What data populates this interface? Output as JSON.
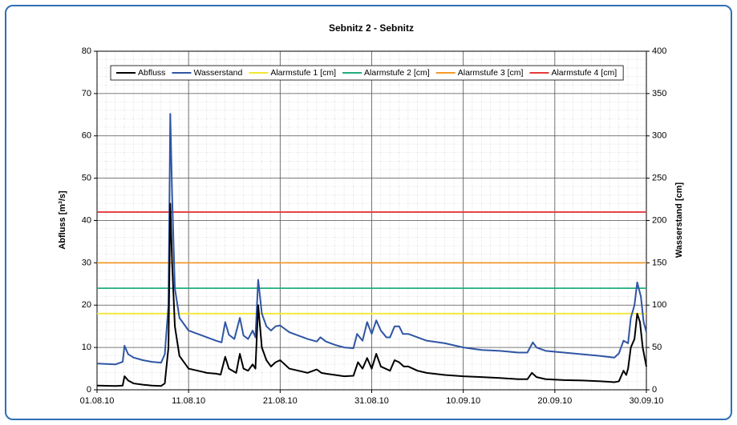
{
  "chart_data": {
    "type": "line",
    "title": "Sebnitz 2 - Sebnitz",
    "y_label": "Abfluss [m³/s]",
    "y2_label": "Wasserstand [cm]",
    "xlim": [
      0,
      60
    ],
    "xticks": [
      {
        "value": 0,
        "label": "01.08.10"
      },
      {
        "value": 10,
        "label": "11.08.10"
      },
      {
        "value": 20,
        "label": "21.08.10"
      },
      {
        "value": 30,
        "label": "31.08.10"
      },
      {
        "value": 40,
        "label": "10.09.10"
      },
      {
        "value": 50,
        "label": "20.09.10"
      },
      {
        "value": 60,
        "label": "30.09.10"
      }
    ],
    "ylim": [
      0,
      80
    ],
    "yticks": [
      0,
      10,
      20,
      30,
      40,
      50,
      60,
      70,
      80
    ],
    "y2lim": [
      0,
      400
    ],
    "y2ticks": [
      0,
      50,
      100,
      150,
      200,
      250,
      300,
      350,
      400
    ],
    "grid": true,
    "legend": "top",
    "series": [
      {
        "name": "Abfluss",
        "color": "#000000",
        "axis": "y",
        "x": [
          0,
          2,
          2.8,
          3.0,
          3.4,
          4,
          5,
          6,
          7,
          7.4,
          7.8,
          8.0,
          8.2,
          8.5,
          9,
          10,
          11,
          12,
          13,
          13.5,
          14,
          14.4,
          14.8,
          15.2,
          15.6,
          16,
          16.5,
          17,
          17.3,
          17.6,
          18,
          18.5,
          19,
          19.5,
          20,
          21,
          22,
          23,
          24,
          24.5,
          25,
          26,
          27,
          28,
          28.5,
          29,
          29.5,
          30,
          30.5,
          31,
          32,
          32.5,
          33,
          33.5,
          34,
          35,
          36,
          38,
          40,
          42,
          44,
          46,
          47,
          47.5,
          48,
          49,
          51,
          53,
          55,
          56.5,
          57,
          57.5,
          57.8,
          58,
          58.3,
          58.7,
          59,
          59.3,
          59.6,
          60
        ],
        "values": [
          1.0,
          0.9,
          1.0,
          3.2,
          2.2,
          1.5,
          1.2,
          1.0,
          0.9,
          1.5,
          10,
          44,
          30,
          15,
          8,
          5,
          4.5,
          4,
          3.8,
          3.6,
          7.8,
          5,
          4.5,
          4,
          8.5,
          5,
          4.5,
          6,
          5,
          20,
          10,
          7,
          5.5,
          6.5,
          7,
          5,
          4.5,
          4,
          4.8,
          4,
          3.8,
          3.5,
          3.2,
          3.3,
          6.5,
          5,
          7.5,
          5,
          8.5,
          5.5,
          4.5,
          7,
          6.5,
          5.5,
          5.5,
          4.5,
          4,
          3.5,
          3.2,
          3,
          2.8,
          2.5,
          2.5,
          4,
          3,
          2.5,
          2.3,
          2.2,
          2,
          1.8,
          2,
          4.5,
          3.5,
          5,
          10,
          12,
          18,
          16,
          10,
          5.5
        ]
      },
      {
        "name": "Wasserstand",
        "color": "#2f55a4",
        "axis": "y2",
        "x": [
          0,
          2,
          2.8,
          3.0,
          3.4,
          4,
          5,
          6,
          7,
          7.4,
          7.8,
          8.0,
          8.2,
          8.5,
          9,
          10,
          11,
          12,
          13,
          13.6,
          14,
          14.4,
          15,
          15.6,
          16,
          16.5,
          17,
          17.3,
          17.6,
          18,
          18.5,
          19,
          19.5,
          20,
          21,
          22,
          23,
          24,
          24.4,
          25,
          26,
          27,
          28,
          28.4,
          29,
          29.5,
          30,
          30.5,
          31,
          31.6,
          32,
          32.5,
          33,
          33.4,
          34,
          35,
          36,
          38,
          40,
          42,
          44,
          46,
          47,
          47.6,
          48,
          49,
          51,
          53,
          55,
          56.5,
          57,
          57.5,
          58,
          58.3,
          58.7,
          59,
          59.4,
          59.7,
          60
        ],
        "values": [
          31,
          30,
          33,
          52,
          42,
          38,
          35,
          33,
          32,
          42,
          100,
          326,
          230,
          120,
          85,
          70,
          66,
          62,
          58,
          56,
          80,
          65,
          60,
          85,
          64,
          60,
          70,
          62,
          130,
          90,
          75,
          70,
          75,
          76,
          68,
          64,
          60,
          57,
          62,
          57,
          53,
          50,
          49,
          66,
          58,
          80,
          66,
          82,
          70,
          62,
          62,
          75,
          75,
          66,
          66,
          62,
          58,
          55,
          50,
          47,
          46,
          44,
          44,
          56,
          50,
          46,
          44,
          42,
          40,
          38,
          43,
          58,
          55,
          85,
          100,
          127,
          110,
          80,
          68
        ]
      },
      {
        "name": "Alarmstufe 1 [cm]",
        "color": "#f2e832",
        "axis": "y2",
        "x": [
          0,
          60
        ],
        "values": [
          90,
          90
        ]
      },
      {
        "name": "Alarmstufe 2 [cm]",
        "color": "#1fae7e",
        "axis": "y2",
        "x": [
          0,
          60
        ],
        "values": [
          120,
          120
        ]
      },
      {
        "name": "Alarmstufe 3 [cm]",
        "color": "#f39a2a",
        "axis": "y2",
        "x": [
          0,
          60
        ],
        "values": [
          150,
          150
        ]
      },
      {
        "name": "Alarmstufe 4 [cm]",
        "color": "#e5383b",
        "axis": "y2",
        "x": [
          0,
          60
        ],
        "values": [
          210,
          210
        ]
      }
    ]
  }
}
